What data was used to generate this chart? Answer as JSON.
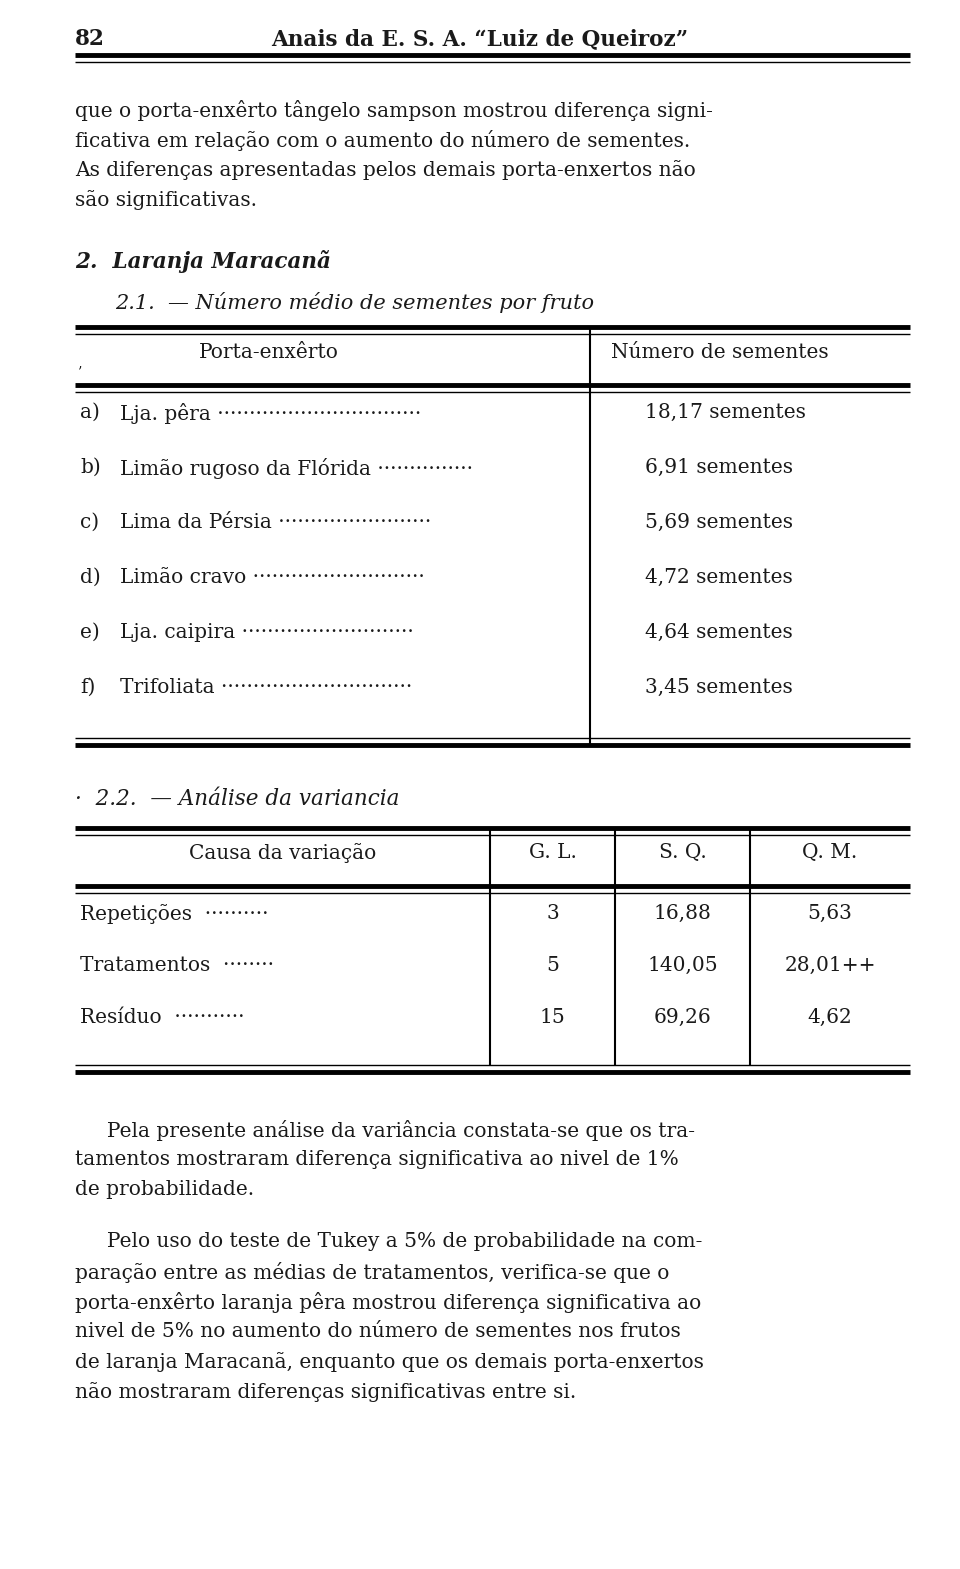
{
  "page_number": "82",
  "header_title": "Anais da E. S. A. “Luiz de Queiroz”",
  "intro_text": [
    "que o porta-enxêrto tângelo sampson mostrou diferença signi-",
    "ficativa em relação com o aumento do número de sementes.",
    "As diferenças apresentadas pelos demais porta-enxertos não",
    "são significativas."
  ],
  "section2_title": "2.  Laranja Maracanã",
  "section21_title": "2.1.  — Número médio de sementes por fruto",
  "table1_col_left": "Porta-enxêrto",
  "table1_col_right": "Número de sementes",
  "table1_rows": [
    [
      "a)",
      "Lja. pêra ································",
      "18,17 sementes"
    ],
    [
      "b)",
      "Limão rugoso da Flórida ···············",
      "6,91 sementes"
    ],
    [
      "c)",
      "Lima da Pérsia ························",
      "5,69 sementes"
    ],
    [
      "d)",
      "Limão cravo ···························",
      "4,72 sementes"
    ],
    [
      "e)",
      "Lja. caipira ···························",
      "4,64 sementes"
    ],
    [
      "f)",
      "Trifoliata ······························",
      "3,45 sementes"
    ]
  ],
  "section22_title": "·  2.2.  — Análise da variancia",
  "table2_headers": [
    "Causa da variação",
    "G. L.",
    "S. Q.",
    "Q. M."
  ],
  "table2_rows": [
    [
      "Repetições  ··········",
      "3",
      "16,88",
      "5,63"
    ],
    [
      "Tratamentos  ········",
      "5",
      "140,05",
      "28,01++"
    ],
    [
      "Resíduo  ···········",
      "15",
      "69,26",
      "4,62"
    ]
  ],
  "para1": "     Pela presente análise da variância constata-se que os tra-\ntamentos mostraram diferença significativa ao nivel de 1%\nde probabilidade.",
  "para2": "     Pelo uso do teste de Tukey a 5% de probabilidade na com-\nparação entre as médias de tratamentos, verifica-se que o\nporta-enxêrto laranja pêra mostrou diferença significativa ao\nnivel de 5% no aumento do número de sementes nos frutos\nde laranja Maracanã, enquanto que os demais porta-enxertos\nnão mostraram diferenças significativas entre si.",
  "bg_color": "#ffffff",
  "text_color": "#1a1a1a",
  "fw": 960,
  "fh": 1569
}
